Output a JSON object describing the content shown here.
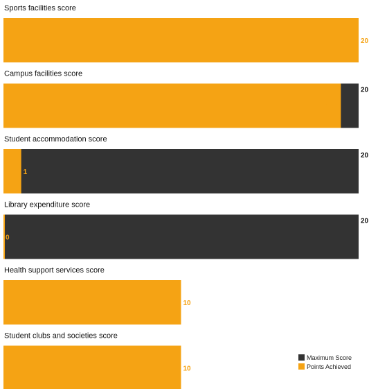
{
  "chart_data": {
    "type": "bar",
    "orientation": "horizontal",
    "layout": "small-multiples",
    "categories": [
      "Sports facilities score",
      "Campus facilities score",
      "Student accommodation score",
      "Library expenditure score",
      "Health support services score",
      "Student clubs and societies score"
    ],
    "series": [
      {
        "name": "Maximum Score",
        "values": [
          20,
          20,
          20,
          20,
          10,
          10
        ],
        "color": "#333333"
      },
      {
        "name": "Points Achieved",
        "values": [
          20,
          19,
          1,
          0,
          10,
          10
        ],
        "color": "#f5a314"
      }
    ],
    "xlim": [
      0,
      20
    ],
    "grid": false,
    "legend_position": "bottom-right"
  }
}
